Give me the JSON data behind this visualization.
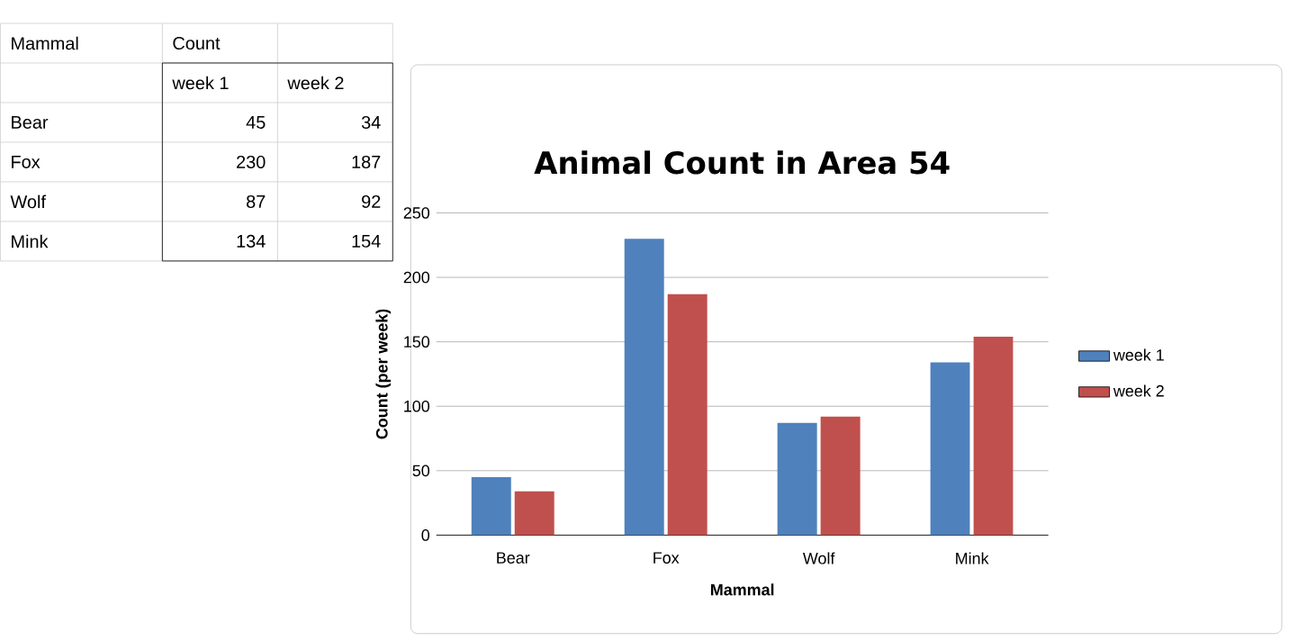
{
  "chart_data": [
    {
      "type": "other",
      "title": "Count",
      "xlabel": "Mammal",
      "categories": [
        "Bear",
        "Fox",
        "Wolf",
        "Mink"
      ],
      "series": [
        {
          "name": "week 1",
          "values": [
            45,
            230,
            87,
            134
          ]
        },
        {
          "name": "week 2",
          "values": [
            34,
            187,
            92,
            154
          ]
        }
      ],
      "data_labels": true
    },
    {
      "type": "bar",
      "title": "Animal Count in Area 54",
      "xlabel": "Mammal",
      "ylabel": "Count (per week)",
      "categories": [
        "Bear",
        "Fox",
        "Wolf",
        "Mink"
      ],
      "series": [
        {
          "name": "week 1",
          "color": "#4f81bd",
          "values": [
            45,
            230,
            87,
            134
          ]
        },
        {
          "name": "week 2",
          "color": "#c0504d",
          "values": [
            34,
            187,
            92,
            154
          ]
        }
      ],
      "ylim": [
        0,
        250
      ],
      "yticks": [
        0,
        50,
        100,
        150,
        200,
        250
      ],
      "grid": "y",
      "legend": "right"
    }
  ]
}
